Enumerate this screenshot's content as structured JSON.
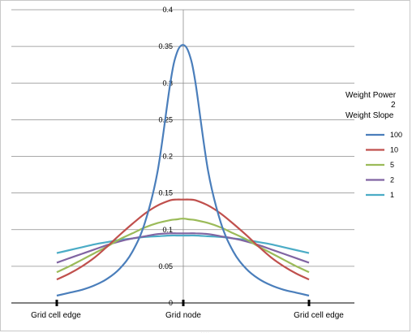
{
  "chart_data": {
    "type": "line",
    "title": "",
    "xlabel": "",
    "ylabel": "",
    "ylim": [
      0,
      0.4
    ],
    "yticks": [
      "0",
      "0.05",
      "0.1",
      "0.15",
      "0.2",
      "0.25",
      "0.3",
      "0.35",
      "0.4"
    ],
    "x_categories": [
      "Grid cell edge",
      "Grid node",
      "Grid cell edge"
    ],
    "x": [
      -1,
      -0.9,
      -0.8,
      -0.7,
      -0.6,
      -0.5,
      -0.4,
      -0.3,
      -0.2,
      -0.1,
      -0.05,
      0,
      0.05,
      0.1,
      0.2,
      0.3,
      0.4,
      0.5,
      0.6,
      0.7,
      0.8,
      0.9,
      1
    ],
    "grid": "horizontal",
    "legend": {
      "title_line1": "Weight Power",
      "title_value": "2",
      "title_line2": "Weight Slope",
      "placement": "right"
    },
    "series": [
      {
        "name": "100",
        "color": "#4a7ebb",
        "values": [
          0.01,
          0.014,
          0.018,
          0.024,
          0.033,
          0.047,
          0.07,
          0.11,
          0.18,
          0.3,
          0.34,
          0.352,
          0.34,
          0.3,
          0.18,
          0.11,
          0.07,
          0.047,
          0.033,
          0.024,
          0.018,
          0.014,
          0.01
        ]
      },
      {
        "name": "10",
        "color": "#c0504d",
        "values": [
          0.032,
          0.04,
          0.05,
          0.062,
          0.077,
          0.093,
          0.108,
          0.122,
          0.133,
          0.14,
          0.141,
          0.141,
          0.141,
          0.14,
          0.133,
          0.122,
          0.108,
          0.093,
          0.077,
          0.062,
          0.05,
          0.04,
          0.032
        ]
      },
      {
        "name": "5",
        "color": "#9bbb59",
        "values": [
          0.042,
          0.05,
          0.059,
          0.068,
          0.077,
          0.087,
          0.095,
          0.103,
          0.109,
          0.113,
          0.114,
          0.115,
          0.114,
          0.113,
          0.109,
          0.103,
          0.095,
          0.087,
          0.077,
          0.068,
          0.059,
          0.05,
          0.042
        ]
      },
      {
        "name": "2",
        "color": "#8064a2",
        "values": [
          0.055,
          0.061,
          0.067,
          0.073,
          0.079,
          0.084,
          0.088,
          0.091,
          0.094,
          0.095,
          0.095,
          0.095,
          0.095,
          0.095,
          0.094,
          0.091,
          0.088,
          0.084,
          0.079,
          0.073,
          0.067,
          0.061,
          0.055
        ]
      },
      {
        "name": "1",
        "color": "#4bacc6",
        "values": [
          0.068,
          0.072,
          0.076,
          0.08,
          0.083,
          0.086,
          0.088,
          0.09,
          0.091,
          0.092,
          0.092,
          0.092,
          0.092,
          0.092,
          0.091,
          0.09,
          0.088,
          0.086,
          0.083,
          0.08,
          0.076,
          0.072,
          0.068
        ]
      }
    ]
  }
}
